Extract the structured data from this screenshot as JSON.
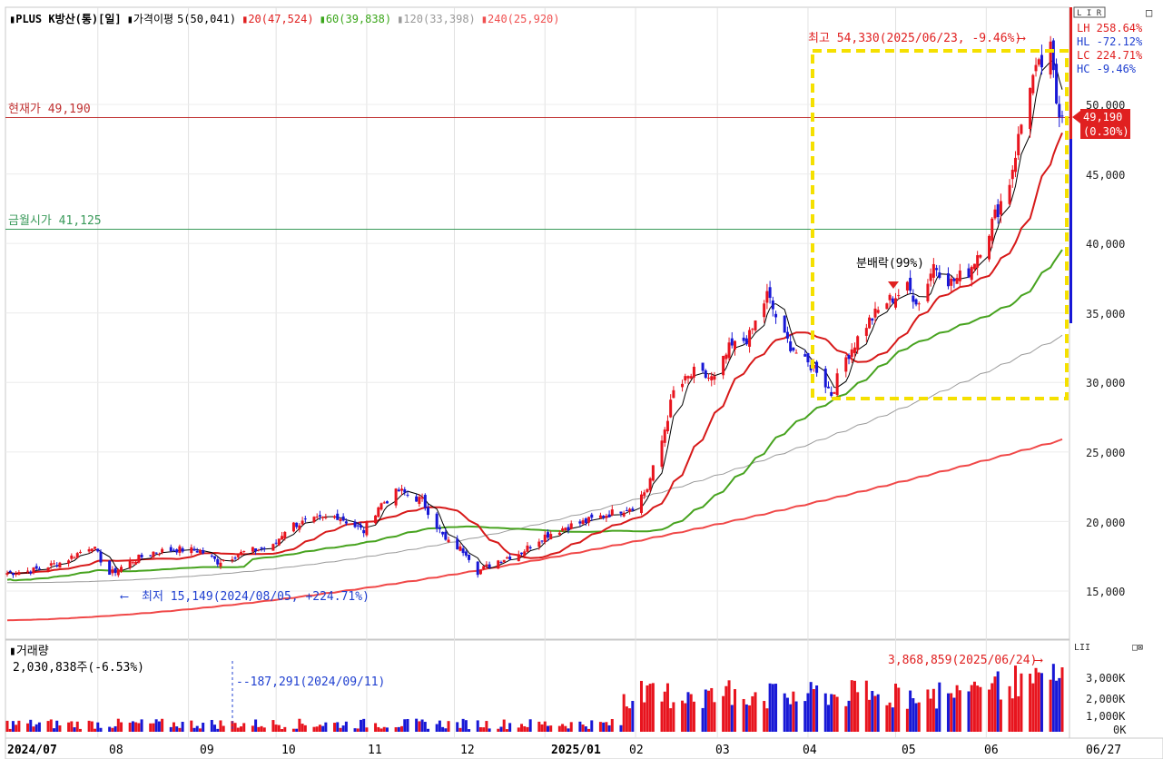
{
  "header": {
    "title": "PLUS K방산(통)[일]",
    "ma_label": "가격이평",
    "ma_items": [
      {
        "text": "5(50,041)",
        "color": "#000000"
      },
      {
        "text": "20(47,524)",
        "color": "#e02020"
      },
      {
        "text": "60(39,838)",
        "color": "#3aa61a"
      },
      {
        "text": "120(33,398)",
        "color": "#999999"
      },
      {
        "text": "240(25,920)",
        "color": "#f05050"
      }
    ],
    "top_buttons": [
      "L",
      "I",
      "R",
      "□"
    ]
  },
  "stats": {
    "LH": "LH 258.64%",
    "HL": "HL -72.12%",
    "LC": "LC 224.71%",
    "HC": "HC  -9.46%"
  },
  "annotations": {
    "current_price_label": "현재가 49,190",
    "gold_price_label": "금월시가 41,125",
    "high_label": "최고 54,330(2025/06/23, -9.46%)",
    "low_label": "최저 15,149(2024/08/05, +224.71%)",
    "split_label": "분배락(99%)",
    "price_tag": "49,190",
    "price_tag_pct": "(0.30%)",
    "volume_peak_label": "3,868,859(2025/06/24)",
    "volume_mark_label": "187,291(2024/09/11)"
  },
  "volume_panel": {
    "title": "거래량",
    "current": "2,030,838주(-6.53%)",
    "buttons_left": "LII",
    "buttons_right": "□⊠"
  },
  "x_axis": {
    "labels": [
      "2024/07",
      "08",
      "09",
      "10",
      "11",
      "12",
      "2025/01",
      "02",
      "03",
      "04",
      "05",
      "06"
    ],
    "end_date": "06/27"
  },
  "price_axis_labels": [
    "50,000",
    "45,000",
    "40,000",
    "35,000",
    "30,000",
    "25,000",
    "20,000",
    "15,000"
  ],
  "volume_axis_labels": [
    "3,000K",
    "2,000K",
    "1,000K",
    "0K"
  ],
  "colors": {
    "up": "#e8141e",
    "down": "#1818d6",
    "ma5": "#000000",
    "ma20": "#d71919",
    "ma60": "#47a31f",
    "ma120": "#9a9a9a",
    "ma240": "#f04848",
    "current_line": "#c02020",
    "gold_line": "#3a9a5a",
    "highlight_box": "#f5e000"
  },
  "chart_data": {
    "type": "candlestick",
    "title": "PLUS K방산(통)[일]",
    "x_range": [
      "2024/07",
      "2025/06/27"
    ],
    "ylim": [
      12500,
      54500
    ],
    "current_price": 49190,
    "gold_open_price": 41125,
    "high": {
      "value": 54330,
      "date": "2025/06/23"
    },
    "low": {
      "value": 15149,
      "date": "2024/08/05"
    },
    "close_path": [
      [
        "2024-07-01",
        16300
      ],
      [
        "2024-07-10",
        16500
      ],
      [
        "2024-07-20",
        17100
      ],
      [
        "2024-07-30",
        18300
      ],
      [
        "2024-08-05",
        16200
      ],
      [
        "2024-08-12",
        17100
      ],
      [
        "2024-08-20",
        17800
      ],
      [
        "2024-08-28",
        18000
      ],
      [
        "2024-09-05",
        17900
      ],
      [
        "2024-09-11",
        17100
      ],
      [
        "2024-09-20",
        17800
      ],
      [
        "2024-09-30",
        18200
      ],
      [
        "2024-10-05",
        19700
      ],
      [
        "2024-10-15",
        20100
      ],
      [
        "2024-10-22",
        20400
      ],
      [
        "2024-10-31",
        19300
      ],
      [
        "2024-11-05",
        21100
      ],
      [
        "2024-11-12",
        22200
      ],
      [
        "2024-11-20",
        21500
      ],
      [
        "2024-11-28",
        18600
      ],
      [
        "2024-12-05",
        17800
      ],
      [
        "2024-12-09",
        16400
      ],
      [
        "2024-12-16",
        17200
      ],
      [
        "2024-12-24",
        17800
      ],
      [
        "2024-12-31",
        18900
      ],
      [
        "2025-01-08",
        19600
      ],
      [
        "2025-01-15",
        20000
      ],
      [
        "2025-01-22",
        20500
      ],
      [
        "2025-01-31",
        21100
      ],
      [
        "2025-02-05",
        22400
      ],
      [
        "2025-02-10",
        25800
      ],
      [
        "2025-02-14",
        29300
      ],
      [
        "2025-02-21",
        30700
      ],
      [
        "2025-02-28",
        30200
      ],
      [
        "2025-03-05",
        32400
      ],
      [
        "2025-03-12",
        33300
      ],
      [
        "2025-03-18",
        36300
      ],
      [
        "2025-03-24",
        33200
      ],
      [
        "2025-03-31",
        31400
      ],
      [
        "2025-04-04",
        31000
      ],
      [
        "2025-04-09",
        29200
      ],
      [
        "2025-04-14",
        31800
      ],
      [
        "2025-04-21",
        34200
      ],
      [
        "2025-04-28",
        35800
      ],
      [
        "2025-05-05",
        36800
      ],
      [
        "2025-05-09",
        35700
      ],
      [
        "2025-05-14",
        38500
      ],
      [
        "2025-05-20",
        37200
      ],
      [
        "2025-05-26",
        38000
      ],
      [
        "2025-06-02",
        41000
      ],
      [
        "2025-06-09",
        44500
      ],
      [
        "2025-06-16",
        51600
      ],
      [
        "2025-06-23",
        53800
      ],
      [
        "2025-06-25",
        50200
      ],
      [
        "2025-06-27",
        49190
      ]
    ],
    "moving_averages": [
      {
        "name": "5",
        "last": 50041
      },
      {
        "name": "20",
        "last": 47524
      },
      {
        "name": "60",
        "last": 39838
      },
      {
        "name": "120",
        "last": 33398
      },
      {
        "name": "240",
        "last": 25920
      }
    ],
    "volume": {
      "ylim_k": [
        0,
        3900
      ],
      "current": 2030838,
      "peak": {
        "value": 3868859,
        "date": "2025/06/24"
      },
      "marked": {
        "value": 187291,
        "date": "2024/09/11"
      }
    }
  }
}
